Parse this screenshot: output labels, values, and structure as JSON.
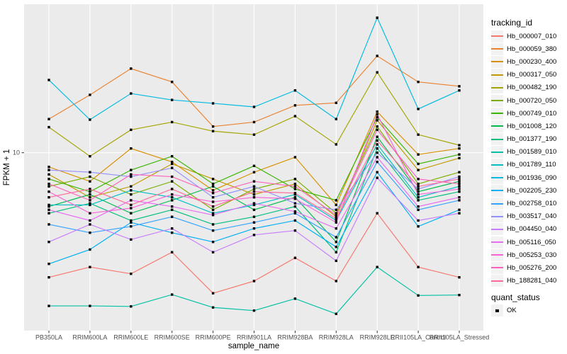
{
  "chart_data": {
    "type": "line",
    "xlabel": "sample_name",
    "ylabel": "FPKM + 1",
    "y_scale": "log10",
    "y_tick_labels": [
      "10"
    ],
    "y_tick_values": [
      10
    ],
    "ylim_log": [
      1.3,
      55
    ],
    "grid": "on",
    "panel_bg": "#EBEBEB",
    "grid_color": "#FFFFFF",
    "tick_label_color": "#4D4D4D",
    "point_shape": "filled-black-square",
    "categories": [
      "PB350LA",
      "RRIM600LA",
      "RRIM600LE",
      "RRIM600SE",
      "RRIM600PE",
      "RRIM901LA",
      "RRIM928BA",
      "RRIM928LA",
      "RRIM928LE",
      "RRII105LA_Control",
      "RRII105LA_Stressed"
    ],
    "series": [
      {
        "name": "Hb_000007_010",
        "color": "#F8766D",
        "values": [
          2.4,
          2.7,
          2.5,
          3.2,
          2.0,
          2.3,
          3.0,
          2.3,
          5.0,
          2.7,
          2.4
        ]
      },
      {
        "name": "Hb_000059_380",
        "color": "#EA8331",
        "values": [
          14.7,
          19.4,
          26.2,
          22.5,
          13.5,
          14.2,
          17.2,
          17.7,
          30.3,
          22.5,
          21.4
        ]
      },
      {
        "name": "Hb_000230_400",
        "color": "#D89000",
        "values": [
          8.5,
          7.2,
          10.5,
          9.0,
          6.5,
          8.0,
          9.5,
          5.5,
          16.0,
          9.8,
          10.5
        ]
      },
      {
        "name": "Hb_000317_050",
        "color": "#C09B00",
        "values": [
          7.8,
          6.0,
          6.8,
          8.8,
          7.4,
          6.2,
          7.0,
          4.8,
          14.5,
          8.2,
          9.4
        ]
      },
      {
        "name": "Hb_000482_190",
        "color": "#A3A500",
        "values": [
          13.4,
          9.6,
          13.0,
          14.2,
          12.8,
          12.3,
          15.2,
          11.0,
          25.1,
          12.3,
          10.9
        ]
      },
      {
        "name": "Hb_000720_050",
        "color": "#7CAE00",
        "values": [
          6.8,
          7.6,
          6.2,
          7.2,
          5.2,
          6.6,
          7.4,
          5.0,
          13.5,
          7.0,
          8.0
        ]
      },
      {
        "name": "Hb_000749_010",
        "color": "#39B600",
        "values": [
          7.4,
          6.4,
          8.2,
          9.6,
          7.0,
          8.6,
          6.6,
          5.8,
          15.0,
          8.8,
          9.8
        ]
      },
      {
        "name": "Hb_001008_120",
        "color": "#00BB4E",
        "values": [
          5.4,
          6.2,
          5.0,
          5.8,
          6.8,
          5.2,
          6.0,
          3.6,
          12.0,
          6.4,
          7.2
        ]
      },
      {
        "name": "Hb_001377_190",
        "color": "#00BF7D",
        "values": [
          5.0,
          5.6,
          4.6,
          5.2,
          4.4,
          4.8,
          5.4,
          3.2,
          10.5,
          5.8,
          6.4
        ]
      },
      {
        "name": "Hb_001589_010",
        "color": "#00C1A3",
        "values": [
          1.73,
          1.73,
          1.72,
          1.97,
          1.7,
          1.64,
          1.88,
          1.58,
          2.7,
          1.95,
          1.96
        ]
      },
      {
        "name": "Hb_001789_110",
        "color": "#00BFC4",
        "values": [
          5.5,
          5.5,
          6.5,
          6.0,
          5.0,
          5.5,
          6.2,
          4.6,
          11.0,
          6.0,
          6.8
        ]
      },
      {
        "name": "Hb_001936_090",
        "color": "#00BAE0",
        "values": [
          23.0,
          14.6,
          19.7,
          18.3,
          17.6,
          16.9,
          20.4,
          14.7,
          46.9,
          16.5,
          20.4
        ]
      },
      {
        "name": "Hb_002205_230",
        "color": "#00B0F6",
        "values": [
          2.8,
          3.3,
          4.5,
          4.0,
          3.6,
          4.2,
          4.6,
          3.4,
          8.0,
          4.3,
          5.2
        ]
      },
      {
        "name": "Hb_002758_010",
        "color": "#35A2FF",
        "values": [
          4.4,
          4.0,
          4.3,
          4.8,
          4.1,
          4.5,
          5.0,
          3.8,
          9.0,
          5.2,
          5.8
        ]
      },
      {
        "name": "Hb_003517_040",
        "color": "#9590FF",
        "values": [
          8.2,
          8.0,
          7.6,
          8.4,
          6.0,
          6.8,
          5.6,
          5.2,
          10.0,
          6.6,
          7.6
        ]
      },
      {
        "name": "Hb_004450_040",
        "color": "#C77CFF",
        "values": [
          3.6,
          4.4,
          3.7,
          4.2,
          3.2,
          3.9,
          4.1,
          2.9,
          7.5,
          4.6,
          5.0
        ]
      },
      {
        "name": "Hb_005116_050",
        "color": "#E76BF3",
        "values": [
          5.2,
          4.6,
          5.8,
          5.4,
          4.9,
          5.6,
          5.1,
          4.2,
          9.5,
          5.4,
          6.0
        ]
      },
      {
        "name": "Hb_005253_030",
        "color": "#FA62DB",
        "values": [
          6.4,
          5.0,
          5.3,
          6.2,
          5.7,
          6.0,
          5.9,
          4.5,
          15.5,
          6.2,
          6.6
        ]
      },
      {
        "name": "Hb_005276_200",
        "color": "#FF62BC",
        "values": [
          7.0,
          5.8,
          7.8,
          7.6,
          6.3,
          7.2,
          6.8,
          4.9,
          13.0,
          7.4,
          7.0
        ]
      },
      {
        "name": "Hb_188281_040",
        "color": "#FF6A98",
        "values": [
          6.0,
          6.6,
          5.5,
          6.6,
          5.4,
          6.4,
          6.3,
          4.7,
          11.5,
          6.8,
          7.4
        ]
      }
    ]
  },
  "legend": {
    "tracking_title": "tracking_id",
    "quant_title": "quant_status",
    "quant_items": [
      {
        "label": "OK"
      }
    ]
  }
}
